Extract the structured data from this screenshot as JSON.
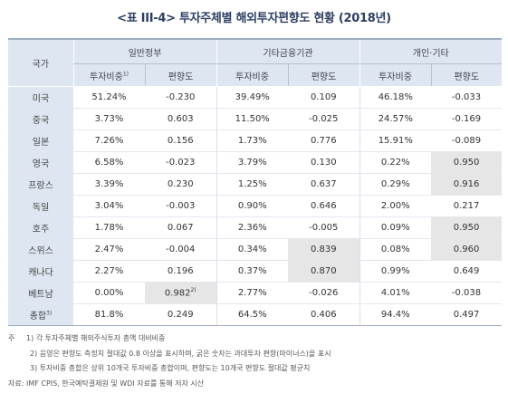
{
  "title": "<표 III-4> 투자주체별 해외투자편향도 현황 (2018년)",
  "header": {
    "country_label": "국가",
    "groups": [
      "일반정부",
      "기타금융기관",
      "개인·기타"
    ],
    "sub": {
      "share": "투자비중",
      "share_sup": "1)",
      "bias": "편향도"
    }
  },
  "rows": [
    {
      "country": "미국",
      "c": [
        "51.24%",
        "-0.230",
        "39.49%",
        "0.109",
        "46.18%",
        "-0.033"
      ]
    },
    {
      "country": "중국",
      "c": [
        "3.73%",
        "0.603",
        "11.50%",
        "-0.025",
        "24.57%",
        "-0.169"
      ]
    },
    {
      "country": "일본",
      "c": [
        "7.26%",
        "0.156",
        "1.73%",
        "0.776",
        "15.91%",
        "-0.089"
      ]
    },
    {
      "country": "영국",
      "c": [
        "6.58%",
        "-0.023",
        "3.79%",
        "0.130",
        "0.22%",
        "0.950"
      ]
    },
    {
      "country": "프랑스",
      "c": [
        "3.39%",
        "0.230",
        "1.25%",
        "0.637",
        "0.29%",
        "0.916"
      ]
    },
    {
      "country": "독일",
      "c": [
        "3.04%",
        "-0.003",
        "0.90%",
        "0.646",
        "2.00%",
        "0.217"
      ]
    },
    {
      "country": "호주",
      "c": [
        "1.78%",
        "0.067",
        "2.36%",
        "-0.005",
        "0.09%",
        "0.950"
      ]
    },
    {
      "country": "스위스",
      "c": [
        "2.47%",
        "-0.004",
        "0.34%",
        "0.839",
        "0.08%",
        "0.960"
      ]
    },
    {
      "country": "캐나다",
      "c": [
        "2.27%",
        "0.196",
        "0.37%",
        "0.870",
        "0.99%",
        "0.649"
      ]
    },
    {
      "country": "베트남",
      "c": [
        "0.00%",
        "0.982",
        "2.77%",
        "-0.026",
        "4.01%",
        "-0.038"
      ],
      "sup": "2)"
    },
    {
      "country": "총합",
      "country_sup": "3)",
      "c": [
        "81.8%",
        "0.249",
        "64.5%",
        "0.406",
        "94.4%",
        "0.497"
      ]
    }
  ],
  "notes": {
    "label": "주",
    "n1": "1) 각 투자주체별 해외주식투자 총액 대비비중",
    "n2": "2) 음영은 편향도 측정치 절대값 0.8 이상을 표시하며, 굵은 숫자는 과대투자 편향(마이너스)을 표시",
    "n3": "3) 투자비중 총합은 상위 10개국 투자비중 총합이며, 편향도는 10개국 편향도 절대값 평균치",
    "source": "자료: IMF CPIS, 한국예탁결제원 및 WDI 자료를 통해 저자 시산"
  }
}
